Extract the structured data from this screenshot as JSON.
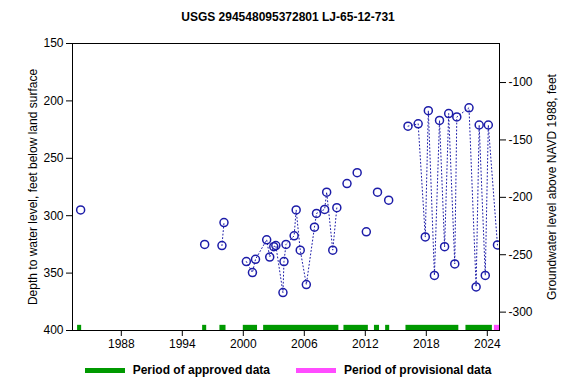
{
  "chart_data": {
    "type": "line",
    "title": "USGS 294548095372801 LJ-65-12-731",
    "y_label": "Depth to water level, feet below land surface",
    "y2_label": "Groundwater level above NAVD 1988, feet",
    "x": [
      1984.0,
      1990,
      1996.2,
      1997,
      1997.9,
      1998.1,
      1999,
      2000.3,
      2000.9,
      2001.2,
      2002.3,
      2002.6,
      2003.0,
      2003.2,
      2003.9,
      2004.0,
      2004.2,
      2005.0,
      2005.2,
      2005.6,
      2006.2,
      2007.0,
      2007.2,
      2008.0,
      2008.2,
      2008.8,
      2009.2,
      2009.7,
      2010.2,
      2010.7,
      2011.2,
      2011.6,
      2012.1,
      2012.6,
      2013.2,
      2013.7,
      2014.3,
      2015.2,
      2016.2,
      2017.2,
      2017.9,
      2018.2,
      2018.8,
      2019.3,
      2019.8,
      2020.2,
      2020.8,
      2021.0,
      2022.2,
      2022.9,
      2023.2,
      2023.8,
      2024.1,
      2025.0
    ],
    "values": [
      295,
      null,
      325,
      null,
      326,
      306,
      null,
      340,
      349.5,
      338,
      321,
      336,
      327,
      326,
      367,
      340,
      325,
      317.5,
      295,
      330,
      360,
      310,
      298,
      294.5,
      279.5,
      330,
      293,
      null,
      272,
      null,
      262.5,
      null,
      314,
      null,
      279.5,
      null,
      286.5,
      null,
      222,
      220,
      318.5,
      208.5,
      352,
      217,
      327,
      211,
      342,
      214,
      206,
      362,
      221,
      352,
      221,
      325.5
    ],
    "color": "#1c1ca8",
    "marker": "circle",
    "line_style": "dotted",
    "xlim": [
      1983.2,
      2025.2
    ],
    "xticks": [
      1988,
      1994,
      2000,
      2006,
      2012,
      2018,
      2024
    ],
    "ylim": [
      150,
      400
    ],
    "yticks": [
      150,
      200,
      250,
      300,
      350,
      400
    ],
    "y2lim": [
      -66,
      -316
    ],
    "y2ticks": [
      -100,
      -150,
      -200,
      -250,
      -300
    ],
    "grid": false,
    "legend": "bottom",
    "periods": [
      {
        "name": "Period of approved data",
        "color": "#009900",
        "ranges": [
          [
            1983.7,
            1984.1
          ],
          [
            1996.0,
            1996.4
          ],
          [
            1997.7,
            1998.3
          ],
          [
            2000.0,
            2001.4
          ],
          [
            2002.0,
            2009.4
          ],
          [
            2009.9,
            2012.3
          ],
          [
            2012.9,
            2013.4
          ],
          [
            2014.0,
            2014.4
          ],
          [
            2016.0,
            2021.2
          ],
          [
            2021.9,
            2024.5
          ]
        ]
      },
      {
        "name": "Period of provisional data",
        "color": "#ff4cff",
        "ranges": [
          [
            2024.7,
            2025.2
          ]
        ]
      }
    ]
  }
}
